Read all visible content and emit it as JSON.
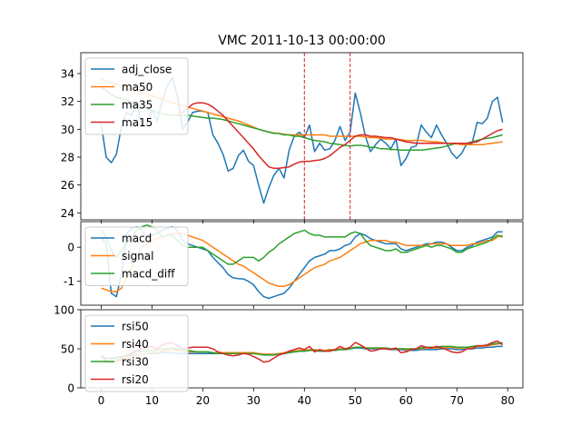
{
  "chart_data": [
    {
      "type": "line",
      "panel": "price",
      "title": "VMC 2011-10-13 00:00:00",
      "xlabel": "",
      "ylabel": "",
      "xlim": [
        -4,
        83
      ],
      "ylim": [
        23.5,
        35.5
      ],
      "yticks": [
        24,
        26,
        28,
        30,
        32,
        34
      ],
      "grid": false,
      "legend": "top-left",
      "vlines": [
        40,
        49
      ],
      "vline_color": "#d62728",
      "series": [
        {
          "name": "adj_close",
          "color": "#1f77b4",
          "values": [
            30.4,
            28.0,
            27.6,
            28.2,
            30.2,
            31.2,
            31.0,
            32.0,
            30.2,
            30.4,
            31.4,
            30.6,
            32.0,
            33.1,
            33.7,
            32.4,
            30.0,
            30.5,
            31.2,
            31.3,
            31.3,
            31.2,
            29.6,
            29.0,
            28.2,
            27.0,
            27.2,
            28.1,
            28.5,
            27.7,
            27.4,
            26.0,
            24.7,
            25.8,
            26.7,
            27.2,
            26.5,
            28.5,
            29.5,
            29.8,
            29.4,
            30.3,
            28.4,
            29.0,
            28.5,
            28.6,
            29.2,
            30.2,
            29.2,
            29.8,
            32.6,
            31.2,
            29.5,
            28.4,
            28.9,
            29.3,
            29.0,
            28.6,
            29.3,
            27.4,
            27.9,
            28.7,
            28.8,
            30.3,
            29.8,
            29.4,
            30.3,
            29.6,
            29.0,
            28.3,
            27.9,
            28.3,
            29.0,
            29.0,
            30.5,
            30.4,
            30.8,
            32.0,
            32.3,
            30.5
          ]
        },
        {
          "name": "ma50",
          "color": "#ff7f0e",
          "values": [
            33.6,
            33.48,
            33.36,
            33.24,
            33.12,
            33.0,
            32.88,
            32.76,
            32.64,
            32.52,
            32.4,
            32.28,
            32.16,
            32.04,
            31.92,
            31.8,
            31.7,
            31.6,
            31.5,
            31.4,
            31.3,
            31.2,
            31.1,
            31.0,
            30.9,
            30.8,
            30.7,
            30.6,
            30.45,
            30.3,
            30.15,
            30.0,
            29.9,
            29.8,
            29.75,
            29.7,
            29.65,
            29.6,
            29.6,
            29.6,
            29.6,
            29.6,
            29.6,
            29.6,
            29.6,
            29.5,
            29.5,
            29.5,
            29.5,
            29.5,
            29.5,
            29.5,
            29.45,
            29.4,
            29.4,
            29.35,
            29.3,
            29.3,
            29.3,
            29.25,
            29.2,
            29.2,
            29.2,
            29.2,
            29.15,
            29.1,
            29.1,
            29.05,
            29.0,
            29.0,
            28.95,
            28.9,
            28.9,
            28.9,
            28.9,
            28.9,
            28.95,
            29.0,
            29.05,
            29.1
          ]
        },
        {
          "name": "ma35",
          "color": "#2ca02c",
          "values": [
            33.0,
            32.8,
            32.5,
            32.3,
            32.2,
            32.1,
            31.95,
            31.8,
            31.6,
            31.5,
            31.35,
            31.2,
            31.1,
            31.05,
            31.0,
            31.0,
            31.0,
            31.0,
            30.95,
            30.9,
            30.85,
            30.8,
            30.8,
            30.75,
            30.7,
            30.6,
            30.5,
            30.4,
            30.3,
            30.2,
            30.1,
            30.0,
            29.9,
            29.8,
            29.7,
            29.7,
            29.6,
            29.6,
            29.5,
            29.5,
            29.4,
            29.3,
            29.2,
            29.15,
            29.1,
            29.0,
            28.95,
            28.9,
            28.85,
            28.8,
            28.85,
            28.85,
            28.8,
            28.7,
            28.7,
            28.6,
            28.6,
            28.55,
            28.55,
            28.5,
            28.5,
            28.5,
            28.5,
            28.5,
            28.55,
            28.6,
            28.65,
            28.7,
            28.8,
            28.9,
            29.0,
            29.0,
            29.0,
            29.1,
            29.2,
            29.3,
            29.35,
            29.4,
            29.5,
            29.6
          ]
        },
        {
          "name": "ma15",
          "color": "#d62728",
          "values": [
            null,
            null,
            null,
            null,
            null,
            null,
            null,
            null,
            null,
            null,
            null,
            null,
            null,
            null,
            null,
            31.0,
            31.2,
            31.5,
            31.8,
            31.9,
            31.9,
            31.8,
            31.6,
            31.3,
            31.0,
            30.6,
            30.2,
            29.8,
            29.4,
            29.0,
            28.6,
            28.1,
            27.7,
            27.3,
            27.2,
            27.2,
            27.25,
            27.3,
            27.5,
            27.65,
            27.7,
            27.7,
            27.75,
            27.8,
            27.9,
            28.1,
            28.4,
            28.7,
            28.9,
            29.2,
            29.5,
            29.6,
            29.6,
            29.5,
            29.5,
            29.45,
            29.4,
            29.4,
            29.3,
            29.2,
            29.1,
            29.05,
            29.0,
            29.0,
            29.0,
            29.0,
            29.0,
            29.0,
            29.0,
            29.0,
            29.0,
            29.0,
            29.0,
            29.05,
            29.1,
            29.3,
            29.5,
            29.7,
            29.9,
            30.0
          ]
        }
      ]
    },
    {
      "type": "line",
      "panel": "macd",
      "xlim": [
        -4,
        83
      ],
      "ylim": [
        -1.7,
        0.75
      ],
      "yticks": [
        -1,
        0
      ],
      "grid": false,
      "legend": "top-left",
      "series": [
        {
          "name": "macd",
          "color": "#1f77b4",
          "values": [
            0.3,
            0.1,
            -1.35,
            -1.45,
            -0.8,
            0.4,
            0.55,
            0.6,
            0.5,
            0.3,
            0.35,
            0.4,
            0.5,
            0.55,
            0.6,
            0.5,
            0.2,
            0.1,
            0.05,
            0.0,
            -0.05,
            -0.1,
            -0.3,
            -0.45,
            -0.6,
            -0.8,
            -0.9,
            -0.92,
            -0.93,
            -1.0,
            -1.1,
            -1.3,
            -1.45,
            -1.5,
            -1.45,
            -1.4,
            -1.35,
            -1.2,
            -1.0,
            -0.8,
            -0.6,
            -0.4,
            -0.3,
            -0.25,
            -0.2,
            -0.1,
            -0.1,
            -0.05,
            0.05,
            0.1,
            0.3,
            0.4,
            0.35,
            0.25,
            0.2,
            0.15,
            0.1,
            0.1,
            0.1,
            -0.05,
            -0.1,
            -0.05,
            0.0,
            0.05,
            0.1,
            0.1,
            0.15,
            0.15,
            0.1,
            0.0,
            -0.1,
            -0.1,
            0.0,
            0.05,
            0.15,
            0.2,
            0.25,
            0.3,
            0.45,
            0.45
          ]
        },
        {
          "name": "signal",
          "color": "#ff7f0e",
          "values": [
            -1.2,
            -1.25,
            -1.3,
            -1.3,
            -1.2,
            -0.9,
            -0.6,
            -0.3,
            0.0,
            0.1,
            0.2,
            0.25,
            0.3,
            0.35,
            0.4,
            0.4,
            0.4,
            0.35,
            0.3,
            0.25,
            0.2,
            0.1,
            0.0,
            -0.1,
            -0.2,
            -0.3,
            -0.4,
            -0.5,
            -0.55,
            -0.65,
            -0.75,
            -0.85,
            -0.95,
            -1.05,
            -1.1,
            -1.15,
            -1.15,
            -1.1,
            -1.0,
            -0.9,
            -0.8,
            -0.7,
            -0.6,
            -0.55,
            -0.5,
            -0.4,
            -0.35,
            -0.3,
            -0.2,
            -0.1,
            0.0,
            0.1,
            0.15,
            0.2,
            0.2,
            0.2,
            0.2,
            0.15,
            0.15,
            0.1,
            0.05,
            0.05,
            0.05,
            0.05,
            0.05,
            0.1,
            0.1,
            0.1,
            0.1,
            0.05,
            0.05,
            0.05,
            0.05,
            0.1,
            0.1,
            0.15,
            0.2,
            0.2,
            0.3,
            0.35
          ]
        },
        {
          "name": "macd_diff",
          "color": "#2ca02c",
          "values": [
            0.5,
            0.3,
            -0.1,
            -0.3,
            -0.1,
            0.1,
            0.3,
            0.5,
            0.6,
            0.65,
            0.6,
            0.5,
            0.3,
            0.35,
            0.35,
            0.2,
            0.05,
            0.0,
            0.0,
            0.0,
            0.0,
            -0.1,
            -0.2,
            -0.3,
            -0.4,
            -0.5,
            -0.5,
            -0.4,
            -0.3,
            -0.3,
            -0.3,
            -0.4,
            -0.3,
            -0.15,
            -0.05,
            0.1,
            0.2,
            0.3,
            0.4,
            0.45,
            0.5,
            0.4,
            0.35,
            0.35,
            0.3,
            0.3,
            0.3,
            0.3,
            0.3,
            0.4,
            0.45,
            0.4,
            0.2,
            0.05,
            0.0,
            -0.05,
            -0.1,
            -0.1,
            -0.05,
            -0.15,
            -0.15,
            -0.1,
            -0.05,
            0.0,
            0.05,
            0.0,
            0.05,
            0.05,
            0.0,
            -0.05,
            -0.15,
            -0.15,
            -0.05,
            0.0,
            0.05,
            0.1,
            0.15,
            0.25,
            0.35,
            0.3
          ]
        }
      ]
    },
    {
      "type": "line",
      "panel": "rsi",
      "xlim": [
        -4,
        83
      ],
      "ylim": [
        0,
        100
      ],
      "yticks": [
        0,
        50,
        100
      ],
      "xticks": [
        0,
        10,
        20,
        30,
        40,
        50,
        60,
        70,
        80
      ],
      "grid": false,
      "legend": "top-left",
      "series": [
        {
          "name": "rsi50",
          "color": "#1f77b4",
          "values": [
            39,
            38,
            38,
            39,
            40,
            41,
            42,
            43,
            43,
            44,
            44,
            44,
            45,
            45,
            45,
            44,
            44,
            44,
            44,
            44,
            44,
            44,
            44,
            44,
            44,
            44,
            44,
            44,
            44,
            44,
            44,
            44,
            43,
            43,
            43,
            44,
            44,
            45,
            46,
            47,
            47,
            48,
            48,
            47,
            47,
            48,
            48,
            49,
            49,
            50,
            51,
            51,
            50,
            50,
            50,
            50,
            50,
            49,
            49,
            49,
            48,
            48,
            48,
            49,
            49,
            49,
            49,
            50,
            50,
            50,
            49,
            49,
            50,
            50,
            51,
            51,
            52,
            52,
            53,
            53
          ]
        },
        {
          "name": "rsi40",
          "color": "#ff7f0e",
          "values": [
            35,
            33,
            33,
            34,
            36,
            38,
            40,
            42,
            43,
            44,
            45,
            46,
            47,
            48,
            49,
            48,
            47,
            46,
            46,
            46,
            46,
            46,
            45,
            45,
            45,
            45,
            45,
            45,
            45,
            45,
            45,
            44,
            43,
            43,
            43,
            44,
            45,
            46,
            47,
            48,
            48,
            49,
            49,
            48,
            48,
            49,
            49,
            50,
            50,
            51,
            52,
            52,
            51,
            51,
            51,
            51,
            51,
            50,
            50,
            50,
            49,
            49,
            50,
            50,
            51,
            51,
            51,
            52,
            52,
            52,
            51,
            51,
            52,
            52,
            53,
            53,
            54,
            55,
            56,
            57
          ]
        },
        {
          "name": "rsi30",
          "color": "#2ca02c",
          "values": [
            42,
            38,
            37,
            38,
            40,
            42,
            44,
            46,
            47,
            48,
            48,
            49,
            50,
            50,
            51,
            50,
            49,
            48,
            47,
            46,
            46,
            46,
            45,
            44,
            44,
            44,
            44,
            44,
            44,
            44,
            44,
            43,
            42,
            42,
            42,
            43,
            44,
            45,
            46,
            47,
            47,
            48,
            48,
            47,
            47,
            48,
            48,
            49,
            49,
            50,
            52,
            52,
            51,
            51,
            51,
            51,
            51,
            50,
            50,
            50,
            50,
            50,
            50,
            51,
            52,
            52,
            52,
            53,
            53,
            53,
            52,
            52,
            52,
            53,
            54,
            54,
            55,
            56,
            57,
            58
          ]
        },
        {
          "name": "rsi20",
          "color": "#d62728",
          "values": [
            40,
            35,
            33,
            34,
            38,
            42,
            45,
            48,
            50,
            52,
            53,
            50,
            55,
            57,
            58,
            54,
            50,
            51,
            52,
            52,
            52,
            52,
            50,
            46,
            44,
            42,
            41,
            42,
            44,
            43,
            40,
            37,
            33,
            34,
            38,
            42,
            44,
            47,
            49,
            51,
            49,
            53,
            46,
            49,
            47,
            47,
            49,
            53,
            50,
            52,
            58,
            55,
            51,
            47,
            48,
            50,
            50,
            49,
            51,
            45,
            46,
            49,
            50,
            54,
            52,
            51,
            53,
            51,
            49,
            46,
            45,
            46,
            50,
            50,
            54,
            54,
            55,
            58,
            60,
            55
          ]
        }
      ]
    }
  ]
}
